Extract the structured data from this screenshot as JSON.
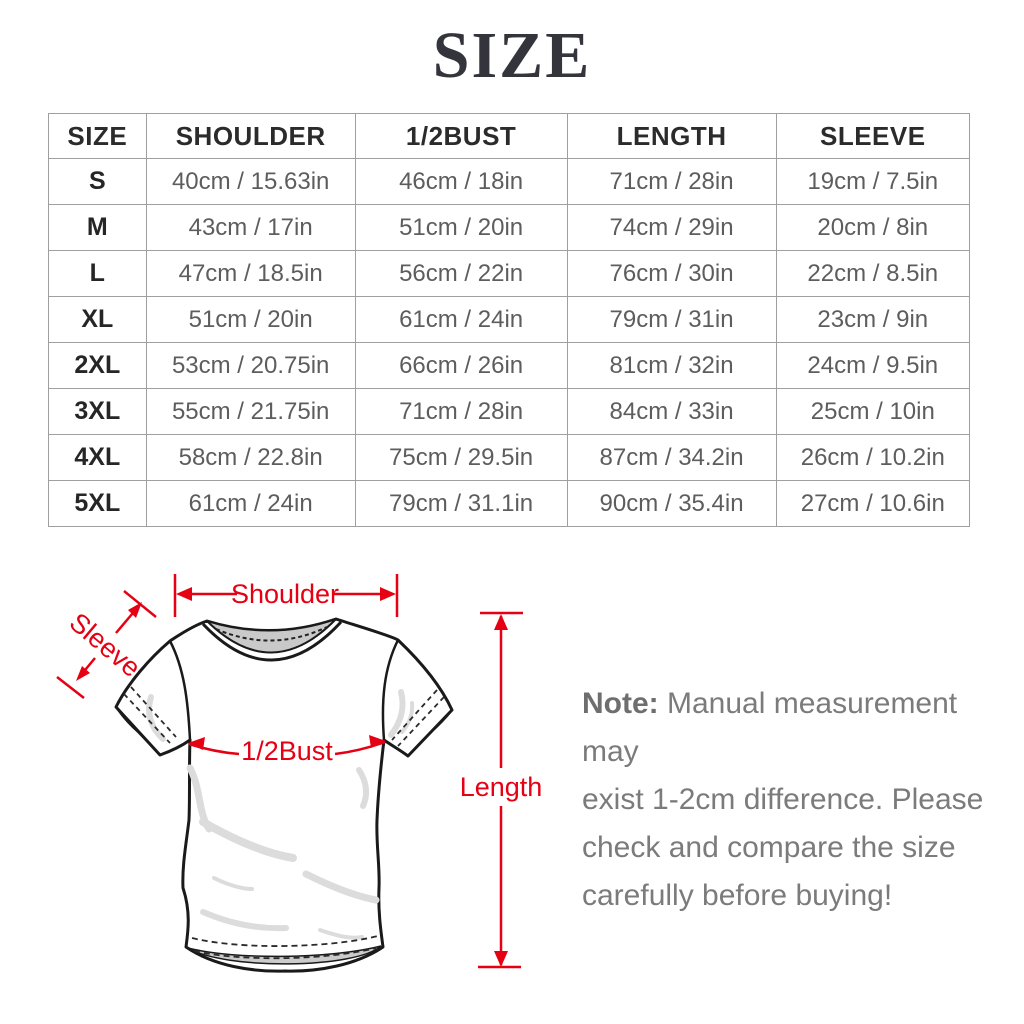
{
  "title": "SIZE",
  "table": {
    "headers": [
      "SIZE",
      "SHOULDER",
      "1/2BUST",
      "LENGTH",
      "SLEEVE"
    ],
    "rows": [
      [
        "S",
        "40cm / 15.63in",
        "46cm / 18in",
        "71cm / 28in",
        "19cm / 7.5in"
      ],
      [
        "M",
        "43cm / 17in",
        "51cm / 20in",
        "74cm / 29in",
        "20cm / 8in"
      ],
      [
        "L",
        "47cm / 18.5in",
        "56cm / 22in",
        "76cm / 30in",
        "22cm / 8.5in"
      ],
      [
        "XL",
        "51cm / 20in",
        "61cm / 24in",
        "79cm / 31in",
        "23cm / 9in"
      ],
      [
        "2XL",
        "53cm / 20.75in",
        "66cm / 26in",
        "81cm / 32in",
        "24cm / 9.5in"
      ],
      [
        "3XL",
        "55cm / 21.75in",
        "71cm / 28in",
        "84cm / 33in",
        "25cm / 10in"
      ],
      [
        "4XL",
        "58cm / 22.8in",
        "75cm / 29.5in",
        "87cm / 34.2in",
        "26cm / 10.2in"
      ],
      [
        "5XL",
        "61cm / 24in",
        "79cm / 31.1in",
        "90cm / 35.4in",
        "27cm / 10.6in"
      ]
    ]
  },
  "diagram": {
    "labels": {
      "shoulder": "Shoulder",
      "sleeve": "Sleeve",
      "bust": "1/2Bust",
      "length": "Length"
    },
    "accent_color": "#e60014"
  },
  "note": {
    "label": "Note:",
    "lines": [
      " Manual measurement may",
      "exist 1-2cm difference. Please",
      "check and compare the size",
      "carefully before buying!"
    ]
  }
}
